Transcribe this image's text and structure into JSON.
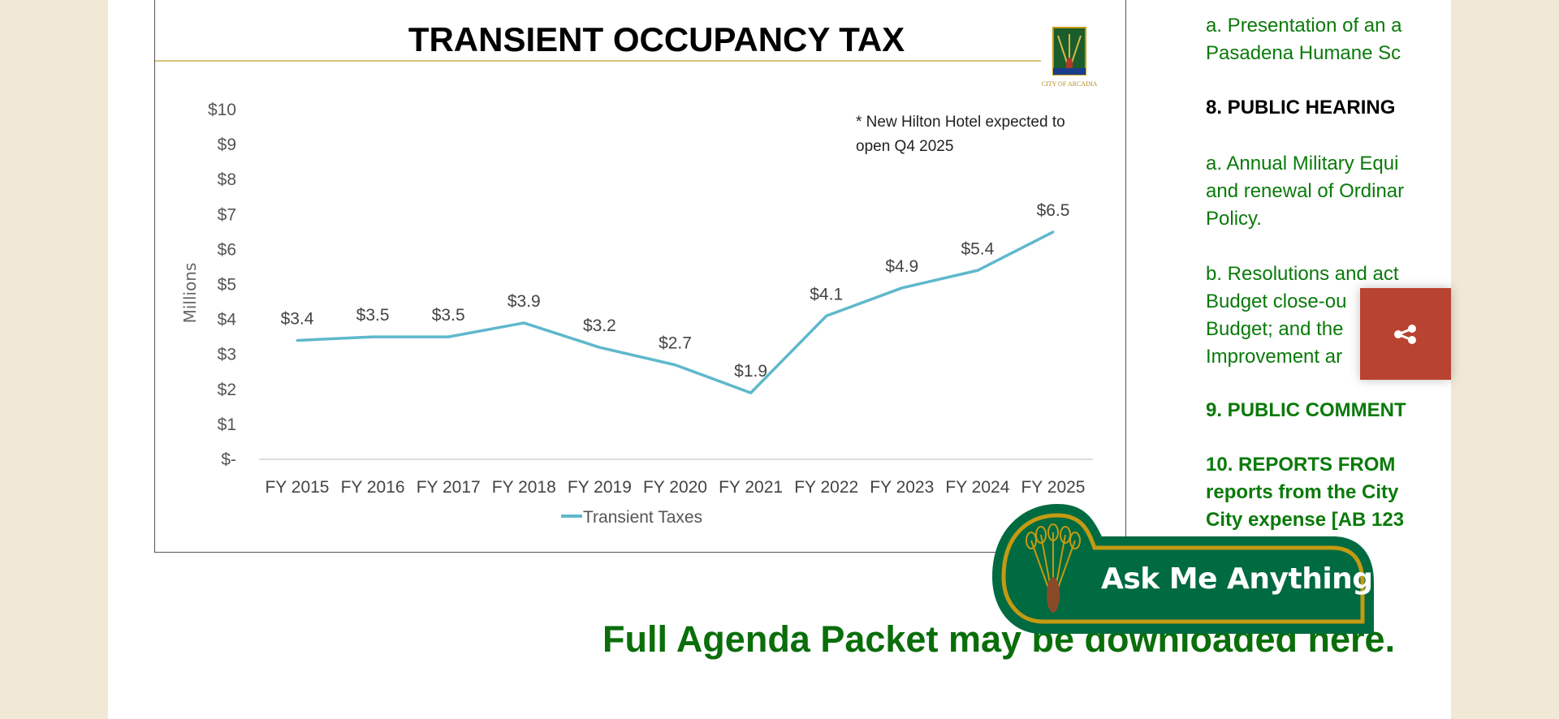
{
  "chart_data": {
    "type": "line",
    "title": "TRANSIENT OCCUPANCY TAX",
    "ylabel": "Millions",
    "xlabel": "",
    "categories": [
      "FY 2015",
      "FY 2016",
      "FY 2017",
      "FY 2018",
      "FY 2019",
      "FY 2020",
      "FY 2021",
      "FY 2022",
      "FY 2023",
      "FY 2024",
      "FY 2025"
    ],
    "series": [
      {
        "name": "Transient Taxes",
        "values": [
          3.4,
          3.5,
          3.5,
          3.9,
          3.2,
          2.7,
          1.9,
          4.1,
          4.9,
          5.4,
          6.5
        ],
        "color": "#5fb8cc"
      }
    ],
    "data_labels": [
      "$3.4",
      "$3.5",
      "$3.5",
      "$3.9",
      "$3.2",
      "$2.7",
      "$1.9",
      "$4.1",
      "$4.9",
      "$5.4",
      "$6.5"
    ],
    "y_ticks": [
      "$-",
      "$1",
      "$2",
      "$3",
      "$4",
      "$5",
      "$6",
      "$7",
      "$8",
      "$9",
      "$10"
    ],
    "ylim": [
      0,
      10
    ],
    "grid": false,
    "legend": "bottom",
    "annotation": [
      "* New Hilton Hotel expected to",
      "open Q4 2025"
    ],
    "logo_text": "CITY OF ARCADIA"
  },
  "agenda": {
    "lines": [
      "a. Presentation of an a",
      "Pasadena Humane Sc",
      "8. PUBLIC HEARING",
      "a. Annual Military Equi",
      "and renewal of Ordinar",
      "Policy.",
      "b. Resolutions and act",
      "Budget close-ou",
      "Budget; and the",
      "Improvement ar",
      "9. PUBLIC COMMENT",
      "10. REPORTS FROM",
      "reports from the City",
      "City expense [AB 123"
    ]
  },
  "share": {
    "icon": "share-icon",
    "color": "#b84330"
  },
  "assistant": {
    "label": "Ask Me Anything",
    "color": "#006a40",
    "border": "#c49a12"
  },
  "packet_link": "Full Agenda Packet may be downloaded here."
}
